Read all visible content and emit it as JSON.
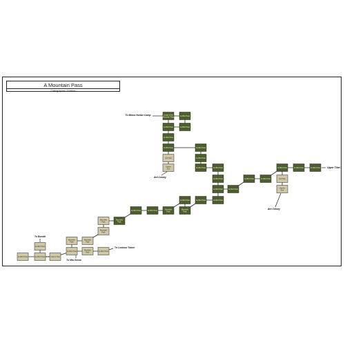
{
  "title": "A Mountain Pass",
  "subtitle": "Cartographer: Goldber",
  "colors": {
    "green": "#4c5e2b",
    "tan": "#cfc7a8",
    "edge": "#222222",
    "text_light": "#f3f3e6",
    "text_dark": "#2b2b20"
  },
  "labels": {
    "minos": "To Minos Hunter Camp",
    "ant1": "Ant Colony",
    "ant2": "Ant Colony",
    "upper": "Upper Tibet",
    "lookout": "To Lookout Tower",
    "burath": "To Burath",
    "mtsovos": "To Mta Sovos"
  },
  "rooms": {
    "r1": "Ledge of the Mountain Pass",
    "r2": "Ax Bird Pass",
    "r3": "Ax Bird Pass",
    "r4": "Ax Bird Pass",
    "r5": "Ax Bird Pass",
    "r6": "Ax Bird Pass",
    "r7": "Ax Bird Pass",
    "r8": "Ant Hole",
    "r9": "Ax Bird Pass",
    "r10": "Cavern Exit",
    "r11": "Ax Bird Pass",
    "r12": "Ax Bird Pass",
    "r13": "Ax Bird Pass",
    "r14": "Ax Bird Pass",
    "r15": "Ax Bird Pass",
    "r16": "Ax Bird Pass",
    "r17": "Ax Bird Pass",
    "r18": "Ax Bird Pass",
    "r19": "Ax Bird Pass",
    "r20": "Ant Hole",
    "r21": "Cavern Exit",
    "r22": "Ax Bird Pass",
    "r23": "Ax Bird Pass",
    "r24": "Ax Bird Pass",
    "r25": "Ax Bird Pass",
    "r26": "Ax Bird Pass",
    "r27": "Ax Bird Pass",
    "r28": "Mountain Path",
    "r29": "Mountain Path",
    "r30": "Mountain Path",
    "r31": "Mountain Path",
    "r32": "Mountain Path",
    "r33": "Mountain Path",
    "r34": "Mountain Path",
    "r35": "Mountain Path",
    "r36": "Ax Bird Pass",
    "r37": "Ax Bird Pass",
    "r38": "Ax Bird Pass",
    "r39": "Ax Bird Pass",
    "r40": "Fork in Trail",
    "r41": "Ax Bird Pass"
  }
}
